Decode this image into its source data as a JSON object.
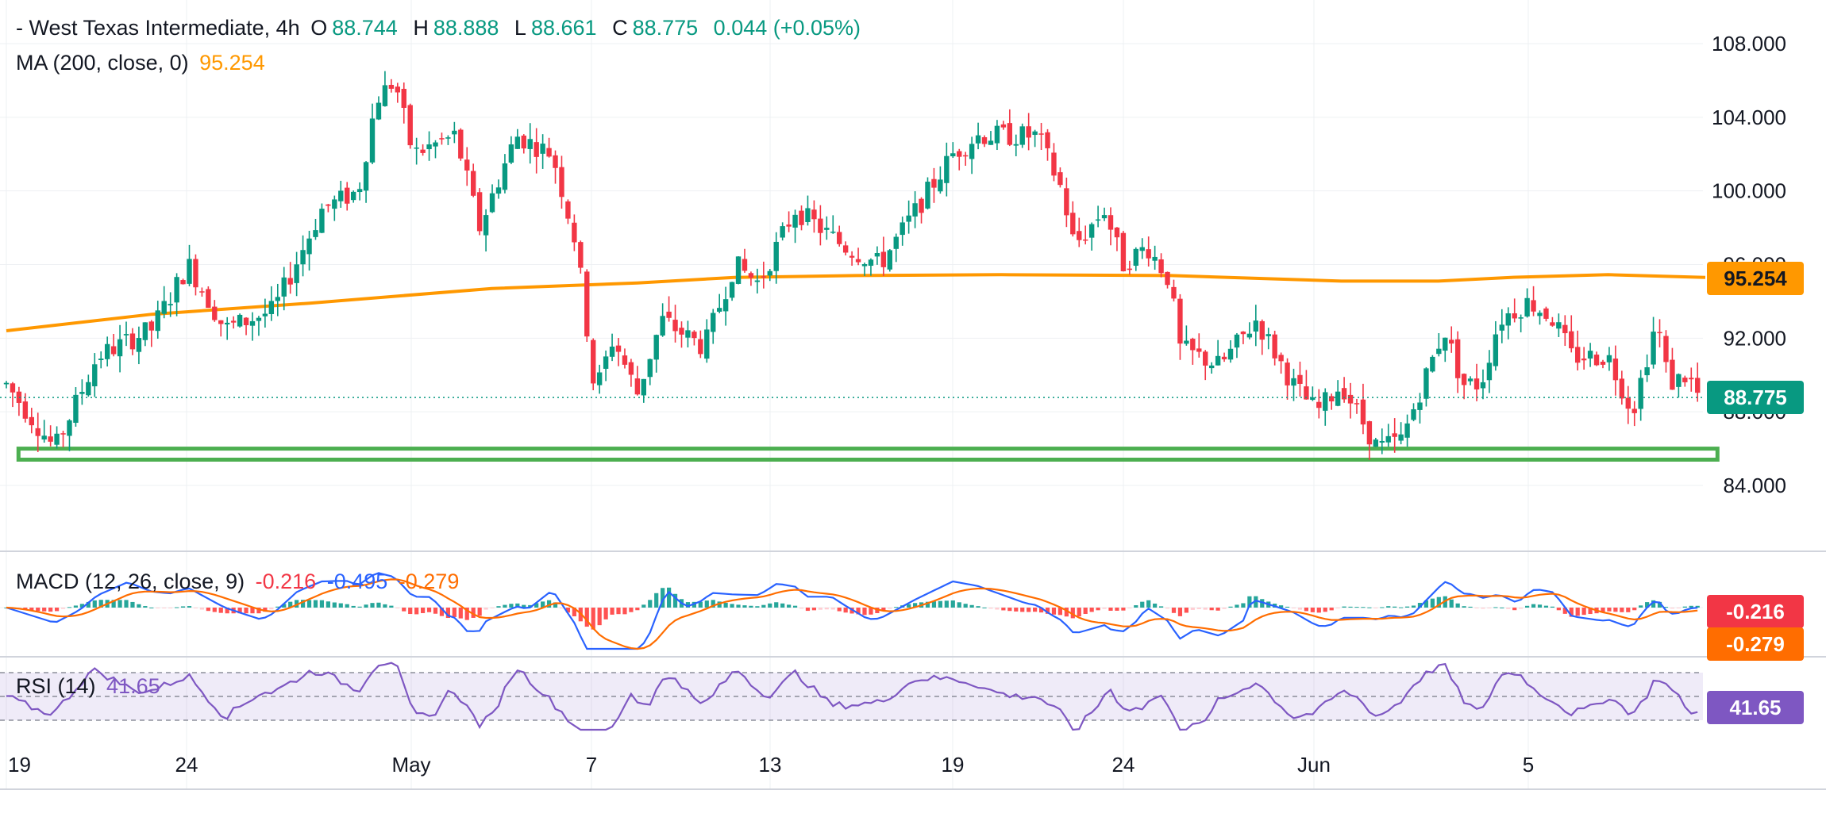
{
  "header": {
    "title": "- West Texas Intermediate, 4h",
    "open_label": "O",
    "open": "88.744",
    "high_label": "H",
    "high": "88.888",
    "low_label": "L",
    "low": "88.661",
    "close_label": "C",
    "close": "88.775",
    "change": "0.044 (+0.05%)"
  },
  "ma_legend": {
    "label": "MA (200, close, 0)",
    "value": "95.254"
  },
  "macd_legend": {
    "label": "MACD (12, 26, close, 9)",
    "hist": "-0.216",
    "macd": "-0.495",
    "signal": "-0.279"
  },
  "rsi_legend": {
    "label": "RSI (14)",
    "value": "41.65"
  },
  "tags": {
    "price": "88.775",
    "ma": "95.254",
    "hist": "-0.216",
    "signal": "-0.279",
    "rsi": "41.65"
  },
  "colors": {
    "up": "#089981",
    "down": "#f23645",
    "ma": "#ff9800",
    "macd": "#2962ff",
    "signal": "#ff6d00",
    "rsi": "#7e57c2",
    "support": "#4caf50"
  },
  "chart_data": {
    "type": "candlestick",
    "symbol": "West Texas Intermediate",
    "timeframe": "4h",
    "y_axis_ticks": [
      "108.000",
      "104.000",
      "100.000",
      "96.000",
      "92.000",
      "88.000",
      "84.000"
    ],
    "ylim": [
      81.4,
      108.8
    ],
    "x_axis_labels": [
      "19",
      "24",
      "May",
      "7",
      "13",
      "19",
      "24",
      "Jun",
      "5"
    ],
    "grid": true,
    "support_zone": [
      85.4,
      86.0
    ],
    "moving_average": {
      "name": "MA (200, close, 0)",
      "current": 95.254,
      "points": [
        [
          0,
          92.4
        ],
        [
          120,
          93.3
        ],
        [
          250,
          93.9
        ],
        [
          400,
          94.7
        ],
        [
          520,
          95.0
        ],
        [
          600,
          95.3
        ],
        [
          700,
          95.4
        ],
        [
          820,
          95.45
        ],
        [
          960,
          95.4
        ],
        [
          1100,
          95.1
        ],
        [
          1180,
          95.1
        ],
        [
          1240,
          95.3
        ],
        [
          1320,
          95.45
        ],
        [
          1400,
          95.3
        ]
      ]
    },
    "price_path": [
      [
        0,
        89.5
      ],
      [
        40,
        86.0
      ],
      [
        75,
        91.0
      ],
      [
        120,
        92.5
      ],
      [
        150,
        96.0
      ],
      [
        180,
        92.5
      ],
      [
        220,
        93.5
      ],
      [
        260,
        99.0
      ],
      [
        290,
        100.0
      ],
      [
        305,
        105.0
      ],
      [
        320,
        106.0
      ],
      [
        335,
        102.0
      ],
      [
        370,
        103.0
      ],
      [
        390,
        98.0
      ],
      [
        420,
        103.0
      ],
      [
        450,
        102.0
      ],
      [
        470,
        97.0
      ],
      [
        485,
        89.0
      ],
      [
        500,
        92.0
      ],
      [
        520,
        89.0
      ],
      [
        540,
        93.0
      ],
      [
        575,
        91.5
      ],
      [
        600,
        96.0
      ],
      [
        620,
        95.0
      ],
      [
        650,
        99.0
      ],
      [
        690,
        97.0
      ],
      [
        720,
        96.0
      ],
      [
        750,
        99.0
      ],
      [
        780,
        102.0
      ],
      [
        800,
        103.0
      ],
      [
        820,
        103.0
      ],
      [
        850,
        103.0
      ],
      [
        870,
        100.0
      ],
      [
        880,
        97.0
      ],
      [
        905,
        99.0
      ],
      [
        920,
        96.0
      ],
      [
        940,
        97.0
      ],
      [
        960,
        95.0
      ],
      [
        965,
        91.5
      ],
      [
        1000,
        90.5
      ],
      [
        1030,
        93.0
      ],
      [
        1060,
        89.5
      ],
      [
        1080,
        88.0
      ],
      [
        1100,
        89.5
      ],
      [
        1130,
        86.0
      ],
      [
        1150,
        86.5
      ],
      [
        1170,
        90.0
      ],
      [
        1185,
        92.5
      ],
      [
        1200,
        89.5
      ],
      [
        1215,
        89.5
      ],
      [
        1230,
        93.0
      ],
      [
        1255,
        94.0
      ],
      [
        1275,
        93.0
      ],
      [
        1290,
        91.0
      ],
      [
        1320,
        91.0
      ],
      [
        1340,
        88.0
      ],
      [
        1360,
        93.0
      ],
      [
        1370,
        89.5
      ],
      [
        1385,
        90.0
      ],
      [
        1395,
        88.775
      ]
    ],
    "last_close": 88.775,
    "macd": {
      "hist": -0.216,
      "macd": -0.495,
      "signal": -0.279
    },
    "rsi": {
      "value": 41.65,
      "levels": [
        70,
        50,
        30
      ]
    }
  }
}
